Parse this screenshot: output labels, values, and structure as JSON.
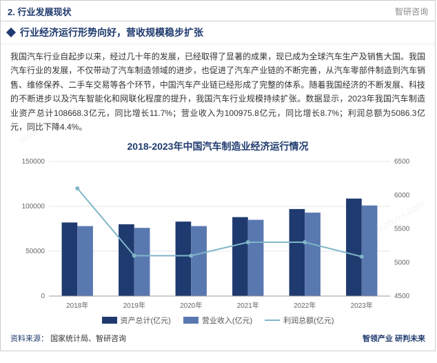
{
  "header": {
    "section_label": "2. 行业发展现状",
    "brand_top": "智研咨询"
  },
  "subheader": {
    "title": "行业经济运行形势向好，营收规模稳步扩张"
  },
  "body": {
    "paragraph": "我国汽车行业自起步以来，经过几十年的发展，已经取得了显著的成果，现已成为全球汽车生产及销售大国。我国汽车行业的发展，不仅带动了汽车制造领域的进步，也促进了汽车产业链的不断完善，从汽车零部件制造到汽车销售、维修保养、二手车交易等各个环节，中国汽车产业链已经形成了完整的体系。随着我国经济的不断发展、科技的不断进步以及汽车智能化和网联化程度的提升，我国汽车行业规模持续扩张。数据显示，2023年我国汽车制造业资产总计108668.3亿元，同比增长11.7%；营业收入为100975.8亿元，同比增长8.7%；利润总额为5086.3亿元，同比下降4.4%。"
  },
  "chart": {
    "title": "2018-2023年中国汽车制造业经济运行情况",
    "type": "bar+line",
    "categories": [
      "2018年",
      "2019年",
      "2020年",
      "2021年",
      "2022年",
      "2023年"
    ],
    "series": {
      "assets": {
        "label": "资产总计(亿元)",
        "color": "#1f3a6e",
        "values": [
          82000,
          80000,
          83000,
          88000,
          97000,
          108668
        ]
      },
      "revenue": {
        "label": "营业收入(亿元)",
        "color": "#5a78b0",
        "values": [
          78000,
          76000,
          78000,
          85000,
          93000,
          100976
        ]
      },
      "profit": {
        "label": "利润总额(亿元)",
        "color": "#7fb6c9",
        "values": [
          6100,
          5100,
          5100,
          5300,
          5300,
          5086
        ]
      }
    },
    "left_axis": {
      "min": 0,
      "max": 150000,
      "step": 50000
    },
    "right_axis": {
      "min": 4500,
      "max": 6500,
      "step": 500
    },
    "background_color": "#ffffff",
    "grid_color": "#e5e5e5",
    "axis_fontsize": 10,
    "bar_group_width": 0.55
  },
  "footer": {
    "source_label": "资料来源：",
    "source_value": "国家统计局、智研咨询",
    "brand_bottom": "智领产业 研判未来"
  },
  "watermarks": [
    "www.chyxx.com",
    "www.chyxx.com"
  ]
}
